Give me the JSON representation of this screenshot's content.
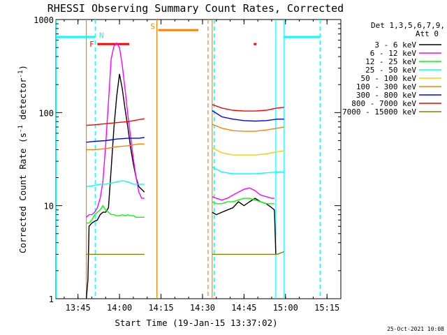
{
  "chart_data": {
    "type": "line",
    "title": "RHESSI Observing Summary Count Rates, Corrected",
    "xlabel": "Start Time (19-Jan-15 13:37:02)",
    "ylabel": "Corrected Count Rate (s⁻¹ detector⁻¹)",
    "ylabel_parts": {
      "pre": "Corrected Count Rate (s",
      "sup1": "-1",
      "mid": " detector",
      "sup2": "-1",
      "post": ")"
    },
    "x_unit": "minutes after 13:37:02",
    "xlim": [
      0,
      103
    ],
    "ylim": [
      1,
      1000
    ],
    "yscale": "log",
    "x_ticks": [
      {
        "x": 8,
        "label": "13:45"
      },
      {
        "x": 23,
        "label": "14:00"
      },
      {
        "x": 38,
        "label": "14:15"
      },
      {
        "x": 53,
        "label": "14:30"
      },
      {
        "x": 68,
        "label": "14:45"
      },
      {
        "x": 83,
        "label": "15:00"
      },
      {
        "x": 98,
        "label": "15:15"
      }
    ],
    "y_ticks": [
      {
        "y": 1,
        "label": "1"
      },
      {
        "y": 10,
        "label": "10"
      },
      {
        "y": 100,
        "label": "100"
      },
      {
        "y": 1000,
        "label": "1000"
      }
    ],
    "legend": {
      "position": "right",
      "header": [
        "Det 1,3,5,6,7,9,",
        "Att 0"
      ]
    },
    "series": [
      {
        "name": "3 - 6 keV",
        "color": "#000000",
        "segments": [
          [
            [
              11.0,
              1.0
            ],
            [
              11.6,
              1.6
            ],
            [
              12.0,
              6.0
            ],
            [
              13.0,
              6.5
            ],
            [
              14.0,
              6.8
            ],
            [
              15.0,
              7.0
            ],
            [
              16.0,
              8.0
            ],
            [
              17.0,
              8.5
            ],
            [
              18.0,
              8.5
            ],
            [
              19.0,
              9.5
            ],
            [
              20.0,
              25
            ],
            [
              21.0,
              70
            ],
            [
              22.0,
              150
            ],
            [
              23.0,
              260
            ],
            [
              24.0,
              180
            ],
            [
              25.0,
              110
            ],
            [
              26.0,
              70
            ],
            [
              27.0,
              42
            ],
            [
              28.0,
              28
            ],
            [
              29.0,
              20
            ],
            [
              30.0,
              16
            ],
            [
              31.0,
              15
            ],
            [
              32.0,
              14
            ]
          ],
          [
            [
              56.5,
              8.5
            ],
            [
              58,
              8
            ],
            [
              60,
              8.5
            ],
            [
              62,
              9
            ],
            [
              64,
              9.5
            ],
            [
              66,
              11
            ],
            [
              68,
              10
            ],
            [
              70,
              11
            ],
            [
              72,
              12
            ],
            [
              74,
              11
            ],
            [
              76,
              10.5
            ],
            [
              78,
              9.5
            ],
            [
              79,
              9
            ],
            [
              79.5,
              3
            ]
          ]
        ]
      },
      {
        "name": "6 - 12 keV",
        "color": "#ff00ff",
        "segments": [
          [
            [
              11.0,
              7.5
            ],
            [
              12.0,
              8.0
            ],
            [
              13.0,
              8.0
            ],
            [
              14.0,
              8.5
            ],
            [
              15.0,
              9.5
            ],
            [
              16.0,
              12
            ],
            [
              17.0,
              18
            ],
            [
              18.0,
              45
            ],
            [
              19.0,
              130
            ],
            [
              20.0,
              380
            ],
            [
              21.0,
              520
            ],
            [
              22.0,
              560
            ],
            [
              23.0,
              500
            ],
            [
              24.0,
              320
            ],
            [
              25.0,
              180
            ],
            [
              26.0,
              95
            ],
            [
              27.0,
              55
            ],
            [
              28.0,
              32
            ],
            [
              29.0,
              20
            ],
            [
              30.0,
              14
            ],
            [
              31.0,
              12
            ],
            [
              32.0,
              12
            ]
          ],
          [
            [
              56.5,
              12.5
            ],
            [
              58,
              12
            ],
            [
              60,
              11.5
            ],
            [
              62,
              12
            ],
            [
              64,
              13
            ],
            [
              66,
              14
            ],
            [
              68,
              15
            ],
            [
              70,
              15.5
            ],
            [
              72,
              14.5
            ],
            [
              74,
              13
            ],
            [
              76,
              12.5
            ],
            [
              78,
              12
            ],
            [
              79,
              12
            ]
          ]
        ]
      },
      {
        "name": "12 - 25 keV",
        "color": "#00ff00",
        "segments": [
          [
            [
              11.0,
              6.5
            ],
            [
              12.0,
              6.5
            ],
            [
              13.0,
              7.0
            ],
            [
              14.0,
              8.0
            ],
            [
              15.0,
              8.5
            ],
            [
              16.0,
              9.0
            ],
            [
              17.0,
              10.0
            ],
            [
              18.0,
              9.0
            ],
            [
              19.0,
              8.5
            ],
            [
              20.0,
              8.0
            ],
            [
              21.0,
              8.0
            ],
            [
              22.0,
              7.8
            ],
            [
              23.0,
              7.8
            ],
            [
              24.0,
              8.0
            ],
            [
              25.0,
              7.8
            ],
            [
              26.0,
              8.0
            ],
            [
              27.0,
              7.8
            ],
            [
              28.0,
              7.8
            ],
            [
              29.0,
              7.5
            ],
            [
              30.0,
              7.5
            ],
            [
              31.0,
              7.5
            ],
            [
              32.0,
              7.5
            ]
          ],
          [
            [
              56.5,
              11
            ],
            [
              58,
              10.5
            ],
            [
              60,
              10.5
            ],
            [
              62,
              11
            ],
            [
              64,
              11
            ],
            [
              66,
              11.5
            ],
            [
              68,
              12
            ],
            [
              70,
              12
            ],
            [
              72,
              11.5
            ],
            [
              74,
              11
            ],
            [
              76,
              10.5
            ],
            [
              78,
              10.5
            ],
            [
              79,
              10.5
            ]
          ]
        ]
      },
      {
        "name": "25 - 50 keV",
        "color": "#00ffff",
        "segments": [
          [
            [
              11.0,
              16
            ],
            [
              14.0,
              16.5
            ],
            [
              16.0,
              17
            ],
            [
              18.0,
              17
            ],
            [
              20.0,
              17.5
            ],
            [
              22.0,
              18
            ],
            [
              24.0,
              18.5
            ],
            [
              26.0,
              18
            ],
            [
              28.0,
              17
            ],
            [
              30.0,
              17
            ],
            [
              32.0,
              17
            ]
          ],
          [
            [
              56.5,
              26
            ],
            [
              60,
              23
            ],
            [
              64,
              22
            ],
            [
              68,
              22
            ],
            [
              72,
              22
            ],
            [
              76,
              22.5
            ],
            [
              80,
              23
            ],
            [
              82.5,
              23
            ]
          ]
        ]
      },
      {
        "name": "50 - 100 keV",
        "color": "#ffcc00",
        "segments": [
          [
            [
              56.5,
              42
            ],
            [
              60,
              37
            ],
            [
              64,
              35
            ],
            [
              68,
              35
            ],
            [
              72,
              35
            ],
            [
              76,
              36
            ],
            [
              80,
              38
            ],
            [
              82.5,
              39
            ]
          ]
        ]
      },
      {
        "name": "100 - 300 keV",
        "color": "#ff8000",
        "segments": [
          [
            [
              11.0,
              40
            ],
            [
              14.0,
              40
            ],
            [
              18.0,
              41
            ],
            [
              22.0,
              43
            ],
            [
              26.0,
              44
            ],
            [
              30.0,
              46
            ],
            [
              32.0,
              46
            ]
          ],
          [
            [
              56.5,
              75
            ],
            [
              60,
              68
            ],
            [
              64,
              64
            ],
            [
              68,
              63
            ],
            [
              72,
              63
            ],
            [
              76,
              65
            ],
            [
              80,
              68
            ],
            [
              82.5,
              70
            ]
          ]
        ]
      },
      {
        "name": "300 - 800 keV",
        "color": "#0000ff",
        "segments": [
          [
            [
              11.0,
              48
            ],
            [
              14.0,
              49
            ],
            [
              18.0,
              50
            ],
            [
              22.0,
              52
            ],
            [
              26.0,
              53
            ],
            [
              30.0,
              53
            ],
            [
              32.0,
              54
            ]
          ],
          [
            [
              56.5,
              105
            ],
            [
              60,
              90
            ],
            [
              64,
              85
            ],
            [
              68,
              82
            ],
            [
              72,
              81
            ],
            [
              76,
              82
            ],
            [
              80,
              85
            ],
            [
              82.5,
              85
            ]
          ]
        ]
      },
      {
        "name": "800 - 7000 keV",
        "color": "#ff0000",
        "segments": [
          [
            [
              11.0,
              73
            ],
            [
              14.0,
              74
            ],
            [
              18.0,
              76
            ],
            [
              22.0,
              78
            ],
            [
              26.0,
              80
            ],
            [
              30.0,
              84
            ],
            [
              32.0,
              86
            ]
          ],
          [
            [
              56.5,
              122
            ],
            [
              60,
              112
            ],
            [
              64,
              106
            ],
            [
              68,
              104
            ],
            [
              72,
              104
            ],
            [
              76,
              106
            ],
            [
              80,
              112
            ],
            [
              82.5,
              114
            ]
          ]
        ]
      },
      {
        "name": "7000 - 15000 keV",
        "color": "#808000",
        "segments": [
          [
            [
              11.0,
              3
            ],
            [
              14.0,
              3
            ],
            [
              17.0,
              3
            ],
            [
              20.0,
              3
            ],
            [
              23.0,
              3
            ],
            [
              26.0,
              3
            ],
            [
              29.0,
              3
            ],
            [
              32.0,
              3
            ]
          ],
          [
            [
              56.5,
              3
            ],
            [
              60,
              3
            ],
            [
              64,
              3
            ],
            [
              68,
              3
            ],
            [
              72,
              3
            ],
            [
              76,
              3
            ],
            [
              80,
              3
            ],
            [
              82.5,
              3.2
            ]
          ]
        ]
      }
    ],
    "vertical_markers": [
      {
        "x": 0.1,
        "color": "#00ffff",
        "style": "solid"
      },
      {
        "x": 14.2,
        "color": "#00ffff",
        "style": "dashed"
      },
      {
        "x": 11.0,
        "color": "#ff8000",
        "style": "solid"
      },
      {
        "x": 36.5,
        "color": "#ff8000",
        "style": "solid"
      },
      {
        "x": 55.0,
        "color": "#ff8000",
        "style": "dashed"
      },
      {
        "x": 56.5,
        "color": "#ff8000",
        "style": "solid"
      },
      {
        "x": 57.2,
        "color": "#00ffff",
        "style": "dashed"
      },
      {
        "x": 79.5,
        "color": "#00ffff",
        "style": "solid"
      },
      {
        "x": 82.5,
        "color": "#00ffff",
        "style": "solid"
      },
      {
        "x": 95.5,
        "color": "#00ffff",
        "style": "dashed"
      }
    ],
    "horizontal_bars": [
      {
        "x0": 0.1,
        "x1": 14.2,
        "y": 650,
        "color": "#00ffff"
      },
      {
        "x0": 82.5,
        "x1": 95.5,
        "y": 650,
        "color": "#00ffff"
      },
      {
        "x0": 37.0,
        "x1": 51.5,
        "y": 770,
        "color": "#ff8000"
      },
      {
        "x0": 15.0,
        "x1": 26.5,
        "y": 545,
        "color": "#ff0000"
      },
      {
        "x0": 71.5,
        "x1": 72.5,
        "y": 545,
        "color": "#ff0000"
      }
    ],
    "annotations": [
      {
        "text": "F",
        "x": 13.0,
        "y": 545,
        "color": "#ff0000"
      },
      {
        "text": "N",
        "x": 16.5,
        "y": 680,
        "color": "#00ffff"
      },
      {
        "text": "S",
        "x": 35.0,
        "y": 850,
        "color": "#ff8000"
      }
    ],
    "timestamp": "25-Oct-2021 10:08"
  }
}
